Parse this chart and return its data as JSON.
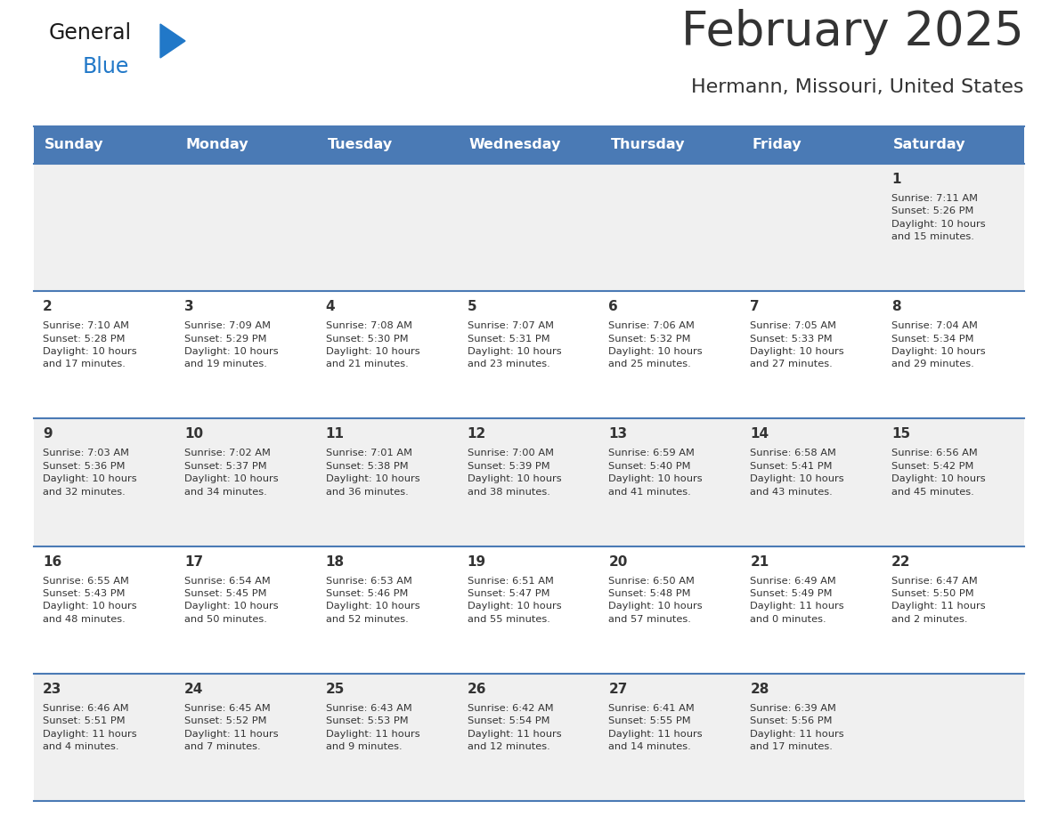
{
  "title": "February 2025",
  "subtitle": "Hermann, Missouri, United States",
  "header_bg_color": "#4a7ab5",
  "header_text_color": "#ffffff",
  "cell_bg_color_odd": "#f0f0f0",
  "cell_bg_color_even": "#ffffff",
  "divider_color": "#4a7ab5",
  "text_color": "#333333",
  "day_headers": [
    "Sunday",
    "Monday",
    "Tuesday",
    "Wednesday",
    "Thursday",
    "Friday",
    "Saturday"
  ],
  "logo_text1": "General",
  "logo_text2": "Blue",
  "logo_color1": "#1a1a1a",
  "logo_color2": "#2178c8",
  "logo_triangle_color": "#2178c8",
  "weeks": [
    [
      {
        "day": null,
        "info": null
      },
      {
        "day": null,
        "info": null
      },
      {
        "day": null,
        "info": null
      },
      {
        "day": null,
        "info": null
      },
      {
        "day": null,
        "info": null
      },
      {
        "day": null,
        "info": null
      },
      {
        "day": 1,
        "info": "Sunrise: 7:11 AM\nSunset: 5:26 PM\nDaylight: 10 hours\nand 15 minutes."
      }
    ],
    [
      {
        "day": 2,
        "info": "Sunrise: 7:10 AM\nSunset: 5:28 PM\nDaylight: 10 hours\nand 17 minutes."
      },
      {
        "day": 3,
        "info": "Sunrise: 7:09 AM\nSunset: 5:29 PM\nDaylight: 10 hours\nand 19 minutes."
      },
      {
        "day": 4,
        "info": "Sunrise: 7:08 AM\nSunset: 5:30 PM\nDaylight: 10 hours\nand 21 minutes."
      },
      {
        "day": 5,
        "info": "Sunrise: 7:07 AM\nSunset: 5:31 PM\nDaylight: 10 hours\nand 23 minutes."
      },
      {
        "day": 6,
        "info": "Sunrise: 7:06 AM\nSunset: 5:32 PM\nDaylight: 10 hours\nand 25 minutes."
      },
      {
        "day": 7,
        "info": "Sunrise: 7:05 AM\nSunset: 5:33 PM\nDaylight: 10 hours\nand 27 minutes."
      },
      {
        "day": 8,
        "info": "Sunrise: 7:04 AM\nSunset: 5:34 PM\nDaylight: 10 hours\nand 29 minutes."
      }
    ],
    [
      {
        "day": 9,
        "info": "Sunrise: 7:03 AM\nSunset: 5:36 PM\nDaylight: 10 hours\nand 32 minutes."
      },
      {
        "day": 10,
        "info": "Sunrise: 7:02 AM\nSunset: 5:37 PM\nDaylight: 10 hours\nand 34 minutes."
      },
      {
        "day": 11,
        "info": "Sunrise: 7:01 AM\nSunset: 5:38 PM\nDaylight: 10 hours\nand 36 minutes."
      },
      {
        "day": 12,
        "info": "Sunrise: 7:00 AM\nSunset: 5:39 PM\nDaylight: 10 hours\nand 38 minutes."
      },
      {
        "day": 13,
        "info": "Sunrise: 6:59 AM\nSunset: 5:40 PM\nDaylight: 10 hours\nand 41 minutes."
      },
      {
        "day": 14,
        "info": "Sunrise: 6:58 AM\nSunset: 5:41 PM\nDaylight: 10 hours\nand 43 minutes."
      },
      {
        "day": 15,
        "info": "Sunrise: 6:56 AM\nSunset: 5:42 PM\nDaylight: 10 hours\nand 45 minutes."
      }
    ],
    [
      {
        "day": 16,
        "info": "Sunrise: 6:55 AM\nSunset: 5:43 PM\nDaylight: 10 hours\nand 48 minutes."
      },
      {
        "day": 17,
        "info": "Sunrise: 6:54 AM\nSunset: 5:45 PM\nDaylight: 10 hours\nand 50 minutes."
      },
      {
        "day": 18,
        "info": "Sunrise: 6:53 AM\nSunset: 5:46 PM\nDaylight: 10 hours\nand 52 minutes."
      },
      {
        "day": 19,
        "info": "Sunrise: 6:51 AM\nSunset: 5:47 PM\nDaylight: 10 hours\nand 55 minutes."
      },
      {
        "day": 20,
        "info": "Sunrise: 6:50 AM\nSunset: 5:48 PM\nDaylight: 10 hours\nand 57 minutes."
      },
      {
        "day": 21,
        "info": "Sunrise: 6:49 AM\nSunset: 5:49 PM\nDaylight: 11 hours\nand 0 minutes."
      },
      {
        "day": 22,
        "info": "Sunrise: 6:47 AM\nSunset: 5:50 PM\nDaylight: 11 hours\nand 2 minutes."
      }
    ],
    [
      {
        "day": 23,
        "info": "Sunrise: 6:46 AM\nSunset: 5:51 PM\nDaylight: 11 hours\nand 4 minutes."
      },
      {
        "day": 24,
        "info": "Sunrise: 6:45 AM\nSunset: 5:52 PM\nDaylight: 11 hours\nand 7 minutes."
      },
      {
        "day": 25,
        "info": "Sunrise: 6:43 AM\nSunset: 5:53 PM\nDaylight: 11 hours\nand 9 minutes."
      },
      {
        "day": 26,
        "info": "Sunrise: 6:42 AM\nSunset: 5:54 PM\nDaylight: 11 hours\nand 12 minutes."
      },
      {
        "day": 27,
        "info": "Sunrise: 6:41 AM\nSunset: 5:55 PM\nDaylight: 11 hours\nand 14 minutes."
      },
      {
        "day": 28,
        "info": "Sunrise: 6:39 AM\nSunset: 5:56 PM\nDaylight: 11 hours\nand 17 minutes."
      },
      {
        "day": null,
        "info": null
      }
    ]
  ]
}
